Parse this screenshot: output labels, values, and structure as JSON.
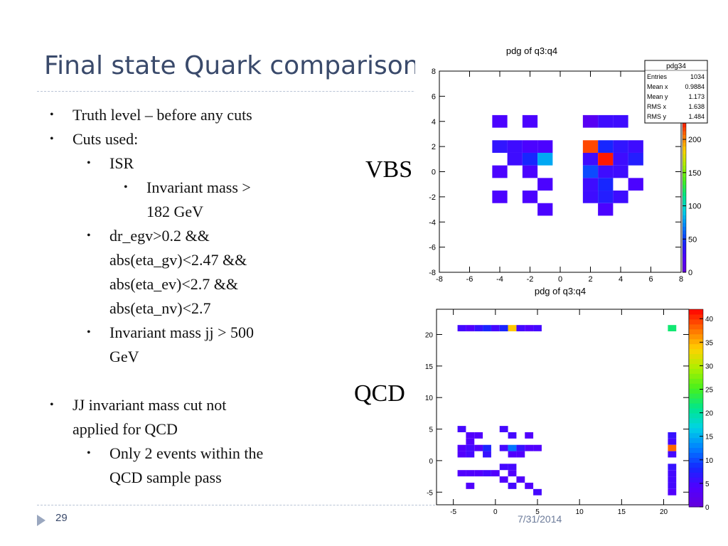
{
  "slide": {
    "title": "Final state Quark comparison",
    "page_number": "29",
    "date_fragment": "7/31/2014"
  },
  "bullets": [
    {
      "level": 1,
      "text": "Truth level – before any cuts"
    },
    {
      "level": 1,
      "text": "Cuts used:"
    },
    {
      "level": 2,
      "text": "ISR"
    },
    {
      "level": 3,
      "text": "Invariant mass >"
    },
    {
      "level": 0,
      "text": "182 GeV",
      "indent": 3
    },
    {
      "level": 2,
      "text": "dr_egv>0.2 &&"
    },
    {
      "level": 0,
      "text": "abs(eta_gv)<2.47 &&",
      "indent": 2
    },
    {
      "level": 0,
      "text": "abs(eta_ev)<2.7 &&",
      "indent": 2
    },
    {
      "level": 0,
      "text": "abs(eta_nv)<2.7",
      "indent": 2
    },
    {
      "level": 2,
      "text": "Invariant mass jj > 500"
    },
    {
      "level": 0,
      "text": "GeV",
      "indent": 2
    },
    {
      "level": -1,
      "text": ""
    },
    {
      "level": 1,
      "text": "JJ invariant mass cut not"
    },
    {
      "level": 0,
      "text": "applied for QCD",
      "indent": 1
    },
    {
      "level": 2,
      "text": "Only 2 events within the"
    },
    {
      "level": 0,
      "text": "QCD sample pass",
      "indent": 2
    }
  ],
  "labels": {
    "vbs": "VBS",
    "qcd": "QCD"
  },
  "chart_data": [
    {
      "type": "heatmap",
      "title": "pdg of q3:q4",
      "xlabel": "pdg of q3:q4",
      "ylabel": "",
      "xlim": [
        -8,
        8
      ],
      "ylim": [
        -8,
        8
      ],
      "x_ticks": [
        -8,
        -6,
        -4,
        -2,
        0,
        2,
        4,
        6,
        8
      ],
      "y_ticks": [
        -8,
        -6,
        -4,
        -2,
        0,
        2,
        4,
        6,
        8
      ],
      "colorbar": {
        "min": 0,
        "max": 230,
        "ticks": [
          0,
          50,
          100,
          150,
          200
        ]
      },
      "stats": {
        "name": "pdg34",
        "rows": [
          {
            "label": "Entries",
            "value": "1034"
          },
          {
            "label": "Mean x",
            "value": "0.9884"
          },
          {
            "label": "Mean y",
            "value": "1.173"
          },
          {
            "label": "RMS x",
            "value": "1.638"
          },
          {
            "label": "RMS y",
            "value": "1.484"
          }
        ]
      },
      "cells": [
        {
          "x": -4,
          "y": 4,
          "v": 25
        },
        {
          "x": -2,
          "y": 4,
          "v": 25
        },
        {
          "x": 2,
          "y": 4,
          "v": 15
        },
        {
          "x": 3,
          "y": 4,
          "v": 30
        },
        {
          "x": 4,
          "y": 4,
          "v": 30
        },
        {
          "x": -4,
          "y": 2,
          "v": 35
        },
        {
          "x": -3,
          "y": 2,
          "v": 30
        },
        {
          "x": -2,
          "y": 2,
          "v": 25
        },
        {
          "x": -1,
          "y": 2,
          "v": 25
        },
        {
          "x": 2,
          "y": 2,
          "v": 215
        },
        {
          "x": 3,
          "y": 2,
          "v": 45
        },
        {
          "x": 4,
          "y": 2,
          "v": 35
        },
        {
          "x": 5,
          "y": 2,
          "v": 30
        },
        {
          "x": -3,
          "y": 1,
          "v": 30
        },
        {
          "x": -2,
          "y": 1,
          "v": 45
        },
        {
          "x": -1,
          "y": 1,
          "v": 80
        },
        {
          "x": 2,
          "y": 1,
          "v": 30
        },
        {
          "x": 3,
          "y": 1,
          "v": 225
        },
        {
          "x": 4,
          "y": 1,
          "v": 30
        },
        {
          "x": 5,
          "y": 1,
          "v": 40
        },
        {
          "x": -4,
          "y": 0,
          "v": 25
        },
        {
          "x": -2,
          "y": 0,
          "v": 25
        },
        {
          "x": 2,
          "y": 0,
          "v": 55
        },
        {
          "x": 3,
          "y": 0,
          "v": 30
        },
        {
          "x": 4,
          "y": 0,
          "v": 30
        },
        {
          "x": -1,
          "y": -1,
          "v": 25
        },
        {
          "x": 2,
          "y": -1,
          "v": 30
        },
        {
          "x": 3,
          "y": -1,
          "v": 45
        },
        {
          "x": 5,
          "y": -1,
          "v": 25
        },
        {
          "x": -4,
          "y": -2,
          "v": 25
        },
        {
          "x": -2,
          "y": -2,
          "v": 25
        },
        {
          "x": 2,
          "y": -2,
          "v": 30
        },
        {
          "x": 3,
          "y": -2,
          "v": 40
        },
        {
          "x": 4,
          "y": -2,
          "v": 30
        },
        {
          "x": -1,
          "y": -3,
          "v": 25
        },
        {
          "x": 3,
          "y": -3,
          "v": 25
        }
      ]
    },
    {
      "type": "heatmap",
      "title": "",
      "xlabel": "",
      "ylabel": "",
      "xlim": [
        -7,
        23
      ],
      "ylim": [
        -7,
        24
      ],
      "x_ticks": [
        -5,
        0,
        5,
        10,
        15,
        20
      ],
      "y_ticks": [
        -5,
        0,
        5,
        10,
        15,
        20
      ],
      "colorbar": {
        "min": 0,
        "max": 42,
        "ticks": [
          0,
          5,
          10,
          15,
          20,
          25,
          30,
          35,
          40
        ]
      },
      "cells": [
        {
          "x": -4,
          "y": 21,
          "v": 5
        },
        {
          "x": -3,
          "y": 21,
          "v": 4
        },
        {
          "x": -2,
          "y": 21,
          "v": 6
        },
        {
          "x": -1,
          "y": 21,
          "v": 8
        },
        {
          "x": 0,
          "y": 21,
          "v": 5
        },
        {
          "x": 1,
          "y": 21,
          "v": 8
        },
        {
          "x": 2,
          "y": 21,
          "v": 34
        },
        {
          "x": 3,
          "y": 21,
          "v": 5
        },
        {
          "x": 4,
          "y": 21,
          "v": 4
        },
        {
          "x": 5,
          "y": 21,
          "v": 5
        },
        {
          "x": 21,
          "y": 21,
          "v": 22
        },
        {
          "x": -4,
          "y": 5,
          "v": 5
        },
        {
          "x": 1,
          "y": 5,
          "v": 5
        },
        {
          "x": -3,
          "y": 4,
          "v": 4
        },
        {
          "x": -2,
          "y": 4,
          "v": 4
        },
        {
          "x": 2,
          "y": 4,
          "v": 5
        },
        {
          "x": 4,
          "y": 4,
          "v": 4
        },
        {
          "x": 21,
          "y": 4,
          "v": 6
        },
        {
          "x": -3,
          "y": 3,
          "v": 4
        },
        {
          "x": 21,
          "y": 3,
          "v": 5
        },
        {
          "x": -4,
          "y": 2,
          "v": 4
        },
        {
          "x": -3,
          "y": 2,
          "v": 5
        },
        {
          "x": -2,
          "y": 2,
          "v": 4
        },
        {
          "x": -1,
          "y": 2,
          "v": 8
        },
        {
          "x": 1,
          "y": 2,
          "v": 5
        },
        {
          "x": 2,
          "y": 2,
          "v": 12
        },
        {
          "x": 3,
          "y": 2,
          "v": 6
        },
        {
          "x": 4,
          "y": 2,
          "v": 4
        },
        {
          "x": 5,
          "y": 2,
          "v": 4
        },
        {
          "x": 21,
          "y": 2,
          "v": 38
        },
        {
          "x": -4,
          "y": 1,
          "v": 4
        },
        {
          "x": -3,
          "y": 1,
          "v": 5
        },
        {
          "x": -1,
          "y": 1,
          "v": 6
        },
        {
          "x": 2,
          "y": 1,
          "v": 4
        },
        {
          "x": 3,
          "y": 1,
          "v": 4
        },
        {
          "x": 21,
          "y": 1,
          "v": 5
        },
        {
          "x": 1,
          "y": -1,
          "v": 5
        },
        {
          "x": 2,
          "y": -1,
          "v": 5
        },
        {
          "x": 21,
          "y": -1,
          "v": 6
        },
        {
          "x": -4,
          "y": -2,
          "v": 4
        },
        {
          "x": -3,
          "y": -2,
          "v": 4
        },
        {
          "x": -2,
          "y": -2,
          "v": 4
        },
        {
          "x": -1,
          "y": -2,
          "v": 5
        },
        {
          "x": 0,
          "y": -2,
          "v": 4
        },
        {
          "x": 2,
          "y": -2,
          "v": 4
        },
        {
          "x": 21,
          "y": -2,
          "v": 5
        },
        {
          "x": 1,
          "y": -3,
          "v": 4
        },
        {
          "x": 3,
          "y": -3,
          "v": 4
        },
        {
          "x": 21,
          "y": -3,
          "v": 5
        },
        {
          "x": -3,
          "y": -4,
          "v": 4
        },
        {
          "x": 2,
          "y": -4,
          "v": 5
        },
        {
          "x": 4,
          "y": -4,
          "v": 4
        },
        {
          "x": 21,
          "y": -4,
          "v": 5
        },
        {
          "x": 5,
          "y": -5,
          "v": 5
        },
        {
          "x": 21,
          "y": -5,
          "v": 4
        }
      ]
    }
  ]
}
